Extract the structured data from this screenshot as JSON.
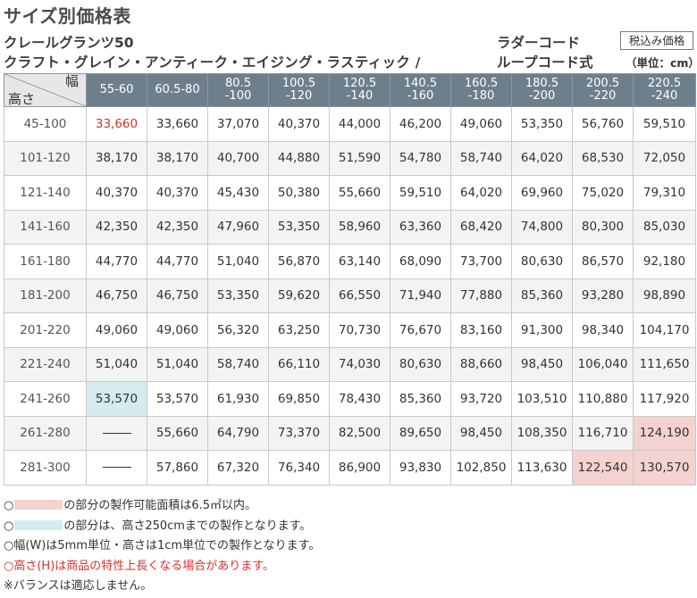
{
  "title": "サイズ別価格表",
  "product": {
    "name": "クレールグランツ50",
    "variants": "クラフト・グレイン・アンティーク・エイジング・ラスティック /",
    "cord_type_1": "ラダーコード",
    "cord_type_2": "ループコード式",
    "tax_badge": "税込み価格",
    "unit": "（単位：cm）"
  },
  "table": {
    "corner_width": "幅",
    "corner_height": "高さ",
    "width_headers": [
      [
        "55-60",
        ""
      ],
      [
        "60.5-80",
        ""
      ],
      [
        "80.5",
        "-100"
      ],
      [
        "100.5",
        "-120"
      ],
      [
        "120.5",
        "-140"
      ],
      [
        "140.5",
        "-160"
      ],
      [
        "160.5",
        "-180"
      ],
      [
        "180.5",
        "-200"
      ],
      [
        "200.5",
        "-220"
      ],
      [
        "220.5",
        "-240"
      ]
    ],
    "rows": [
      {
        "height": "45-100",
        "prices": [
          "33,660",
          "33,660",
          "37,070",
          "40,370",
          "44,000",
          "46,200",
          "49,060",
          "53,350",
          "56,760",
          "59,510"
        ]
      },
      {
        "height": "101-120",
        "prices": [
          "38,170",
          "38,170",
          "40,700",
          "44,880",
          "51,590",
          "54,780",
          "58,740",
          "64,020",
          "68,530",
          "72,050"
        ]
      },
      {
        "height": "121-140",
        "prices": [
          "40,370",
          "40,370",
          "45,430",
          "50,380",
          "55,660",
          "59,510",
          "64,020",
          "69,960",
          "75,020",
          "79,310"
        ]
      },
      {
        "height": "141-160",
        "prices": [
          "42,350",
          "42,350",
          "47,960",
          "53,350",
          "58,960",
          "63,360",
          "68,420",
          "74,800",
          "80,300",
          "85,030"
        ]
      },
      {
        "height": "161-180",
        "prices": [
          "44,770",
          "44,770",
          "51,040",
          "56,870",
          "63,140",
          "68,090",
          "73,700",
          "80,630",
          "86,570",
          "92,180"
        ]
      },
      {
        "height": "181-200",
        "prices": [
          "46,750",
          "46,750",
          "53,350",
          "59,620",
          "66,550",
          "71,940",
          "77,880",
          "85,360",
          "93,280",
          "98,890"
        ]
      },
      {
        "height": "201-220",
        "prices": [
          "49,060",
          "49,060",
          "56,320",
          "63,250",
          "70,730",
          "76,670",
          "83,160",
          "91,300",
          "98,340",
          "104,170"
        ]
      },
      {
        "height": "221-240",
        "prices": [
          "51,040",
          "51,040",
          "58,740",
          "66,110",
          "74,030",
          "80,630",
          "88,660",
          "98,450",
          "106,040",
          "111,650"
        ]
      },
      {
        "height": "241-260",
        "prices": [
          "53,570",
          "53,570",
          "61,930",
          "69,850",
          "78,430",
          "85,360",
          "93,720",
          "103,510",
          "110,880",
          "117,920"
        ]
      },
      {
        "height": "261-280",
        "prices": [
          "—",
          "55,660",
          "64,790",
          "73,370",
          "82,500",
          "89,650",
          "98,450",
          "108,350",
          "116,710",
          "124,190"
        ]
      },
      {
        "height": "281-300",
        "prices": [
          "—",
          "57,860",
          "67,320",
          "76,340",
          "86,900",
          "93,830",
          "102,850",
          "113,630",
          "122,540",
          "130,570"
        ]
      }
    ],
    "highlight_colors": {
      "pink": "#f4d2d0",
      "blue": "#d4ecef",
      "red_text": "#c0392b",
      "header_bg": "#6e7f8c"
    }
  },
  "notes": {
    "pink_prefix": "○",
    "pink_text": "の部分の製作可能面積は6.5㎡以内。",
    "blue_prefix": "○",
    "blue_text": "の部分は、高さ250cmまでの製作となります。",
    "unit_note": "○幅(W)は5mm単位・高さは1cm単位での製作となります。",
    "red_note": "○高さ(H)は商品の特性上長くなる場合があります。",
    "valance_note": "※バランスは適応しません。"
  }
}
